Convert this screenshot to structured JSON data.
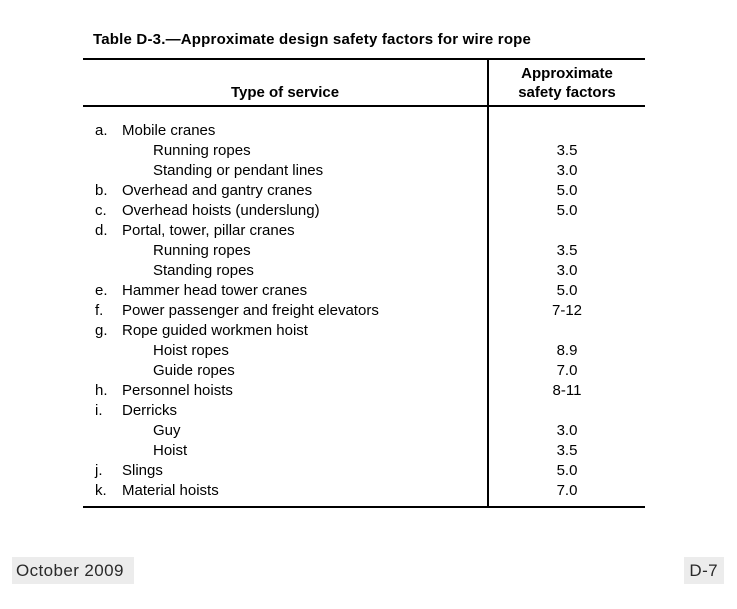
{
  "document": {
    "title": "Table D-3.—Approximate design safety factors for wire rope",
    "footer_left": "October 2009",
    "footer_right": "D-7"
  },
  "table": {
    "header": {
      "service_column": "Type of service",
      "factors_column_line1": "Approximate",
      "factors_column_line2": "safety factors"
    },
    "rows": [
      {
        "letter": "a.",
        "label": "Mobile cranes",
        "value": "",
        "indent": false
      },
      {
        "letter": "",
        "label": "Running ropes",
        "value": "3.5",
        "indent": true
      },
      {
        "letter": "",
        "label": "Standing or pendant lines",
        "value": "3.0",
        "indent": true
      },
      {
        "letter": "b.",
        "label": "Overhead and gantry cranes",
        "value": "5.0",
        "indent": false
      },
      {
        "letter": "c.",
        "label": "Overhead hoists (underslung)",
        "value": "5.0",
        "indent": false
      },
      {
        "letter": "d.",
        "label": "Portal, tower, pillar cranes",
        "value": "",
        "indent": false
      },
      {
        "letter": "",
        "label": "Running ropes",
        "value": "3.5",
        "indent": true
      },
      {
        "letter": "",
        "label": "Standing ropes",
        "value": "3.0",
        "indent": true
      },
      {
        "letter": "e.",
        "label": "Hammer head tower cranes",
        "value": "5.0",
        "indent": false
      },
      {
        "letter": "f.",
        "label": "Power passenger and freight elevators",
        "value": "7-12",
        "indent": false
      },
      {
        "letter": "g.",
        "label": "Rope guided workmen hoist",
        "value": "",
        "indent": false
      },
      {
        "letter": "",
        "label": "Hoist ropes",
        "value": "8.9",
        "indent": true
      },
      {
        "letter": "",
        "label": "Guide ropes",
        "value": "7.0",
        "indent": true
      },
      {
        "letter": "h.",
        "label": "Personnel hoists",
        "value": "8-11",
        "indent": false
      },
      {
        "letter": "i.",
        "label": "Derricks",
        "value": "",
        "indent": false
      },
      {
        "letter": "",
        "label": "Guy",
        "value": "3.0",
        "indent": true
      },
      {
        "letter": "",
        "label": "Hoist",
        "value": "3.5",
        "indent": true
      },
      {
        "letter": "j.",
        "label": "Slings",
        "value": "5.0",
        "indent": false
      },
      {
        "letter": "k.",
        "label": "Material hoists",
        "value": "7.0",
        "indent": false
      }
    ]
  },
  "colors": {
    "text": "#000000",
    "border": "#000000",
    "footer_highlight": "#ececec"
  }
}
